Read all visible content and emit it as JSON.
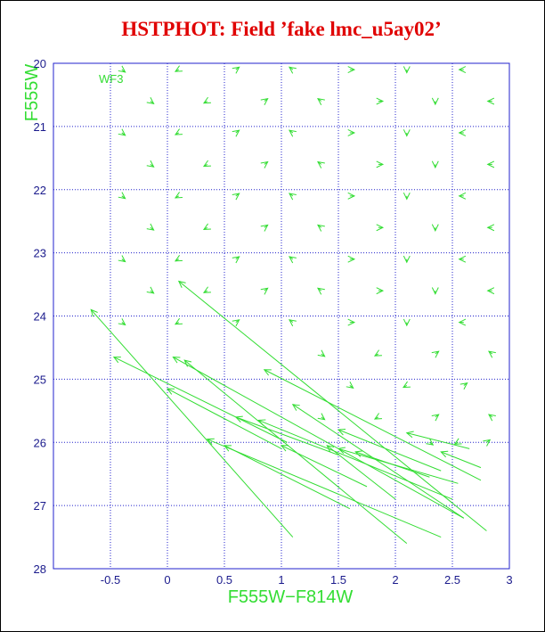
{
  "chart_data": {
    "type": "vector",
    "title": "HSTPHOT: Field ’fake lmc_u5ay02’",
    "annotation": "WF3",
    "x_label": "F555W−F814W",
    "y_label": "F555W",
    "xlim": [
      -1,
      3
    ],
    "ylim": [
      20,
      28
    ],
    "y_inverted": true,
    "xticks": [
      -0.5,
      0,
      0.5,
      1,
      1.5,
      2,
      2.5,
      3
    ],
    "yticks": [
      20,
      21,
      22,
      23,
      24,
      25,
      26,
      27,
      28
    ],
    "grid": true,
    "grid_color": "#2222cc",
    "frame_color": "#2222cc",
    "color": "#33dd33",
    "title_color": "#e00000",
    "x": [
      -0.37,
      0.07,
      0.63,
      1.07,
      1.64,
      2.1,
      2.56,
      -0.12,
      0.32,
      0.88,
      1.32,
      1.89,
      2.35,
      2.81,
      -0.37,
      0.07,
      0.63,
      1.07,
      1.64,
      2.1,
      2.56,
      -0.12,
      0.32,
      0.88,
      1.32,
      1.89,
      2.35,
      2.81,
      -0.37,
      0.07,
      0.63,
      1.07,
      1.64,
      2.1,
      2.56,
      -0.12,
      0.32,
      0.88,
      1.32,
      1.89,
      2.35,
      2.81,
      -0.37,
      0.07,
      0.63,
      1.07,
      1.64,
      2.1,
      2.56,
      -0.12,
      0.32,
      0.88,
      1.32,
      1.89,
      2.35,
      2.81,
      -0.37,
      0.07,
      0.63,
      1.07,
      1.64,
      2.1,
      2.56,
      1.38,
      1.82,
      2.38,
      2.82,
      1.63,
      2.07,
      2.63,
      1.38,
      1.82,
      2.38,
      2.82,
      2.33,
      2.52,
      2.83,
      -0.67,
      -0.47,
      0.1,
      0.05,
      0.15,
      0.0,
      0.35,
      0.5,
      0.6,
      0.8,
      0.85,
      1.0,
      1.1,
      1.5,
      1.4,
      1.5,
      1.65,
      2.4,
      2.1
    ],
    "y": [
      20.14,
      20.13,
      20.06,
      20.06,
      20.1,
      20.15,
      20.1,
      20.64,
      20.63,
      20.56,
      20.56,
      20.6,
      20.65,
      20.6,
      21.14,
      21.13,
      21.06,
      21.06,
      21.1,
      21.15,
      21.1,
      21.64,
      21.63,
      21.56,
      21.56,
      21.6,
      21.65,
      21.6,
      22.14,
      22.13,
      22.06,
      22.06,
      22.1,
      22.15,
      22.1,
      22.64,
      22.63,
      22.56,
      22.56,
      22.6,
      22.65,
      22.6,
      23.14,
      23.13,
      23.06,
      23.06,
      23.1,
      23.15,
      23.1,
      23.64,
      23.63,
      23.56,
      23.56,
      23.6,
      23.65,
      23.6,
      24.14,
      24.13,
      24.06,
      24.06,
      24.1,
      24.15,
      24.1,
      24.64,
      24.63,
      24.56,
      24.56,
      25.14,
      25.13,
      25.06,
      25.64,
      25.63,
      25.56,
      25.56,
      26.04,
      26.03,
      25.96,
      23.9,
      24.65,
      23.45,
      24.65,
      24.7,
      25.15,
      25.95,
      26.05,
      25.6,
      25.65,
      24.85,
      26.05,
      25.4,
      25.8,
      26.05,
      26.1,
      26.15,
      26.15,
      25.85
    ],
    "x_in": [
      -0.4,
      0.1,
      0.6,
      1.1,
      1.6,
      2.1,
      2.6,
      -0.15,
      0.35,
      0.85,
      1.35,
      1.85,
      2.35,
      2.85,
      -0.4,
      0.1,
      0.6,
      1.1,
      1.6,
      2.1,
      2.6,
      -0.15,
      0.35,
      0.85,
      1.35,
      1.85,
      2.35,
      2.85,
      -0.4,
      0.1,
      0.6,
      1.1,
      1.6,
      2.1,
      2.6,
      -0.15,
      0.35,
      0.85,
      1.35,
      1.85,
      2.35,
      2.85,
      -0.4,
      0.1,
      0.6,
      1.1,
      1.6,
      2.1,
      2.6,
      -0.15,
      0.35,
      0.85,
      1.35,
      1.85,
      2.35,
      2.85,
      -0.4,
      0.1,
      0.6,
      1.1,
      1.6,
      2.1,
      2.6,
      1.35,
      1.85,
      2.35,
      2.85,
      1.6,
      2.1,
      2.6,
      1.35,
      1.85,
      2.35,
      2.85,
      2.3,
      2.55,
      2.8,
      1.1,
      1.05,
      2.8,
      2.6,
      2.1,
      1.0,
      2.4,
      1.6,
      1.5,
      2.5,
      2.75,
      1.75,
      2.6,
      2.4,
      2.0,
      2.55,
      2.3,
      2.75,
      2.65
    ],
    "y_in": [
      20.1,
      20.1,
      20.1,
      20.1,
      20.1,
      20.1,
      20.1,
      20.6,
      20.6,
      20.6,
      20.6,
      20.6,
      20.6,
      20.6,
      21.1,
      21.1,
      21.1,
      21.1,
      21.1,
      21.1,
      21.1,
      21.6,
      21.6,
      21.6,
      21.6,
      21.6,
      21.6,
      21.6,
      22.1,
      22.1,
      22.1,
      22.1,
      22.1,
      22.1,
      22.1,
      22.6,
      22.6,
      22.6,
      22.6,
      22.6,
      22.6,
      22.6,
      23.1,
      23.1,
      23.1,
      23.1,
      23.1,
      23.1,
      23.1,
      23.6,
      23.6,
      23.6,
      23.6,
      23.6,
      23.6,
      23.6,
      24.1,
      24.1,
      24.1,
      24.1,
      24.1,
      24.1,
      24.1,
      24.6,
      24.6,
      24.6,
      24.6,
      25.1,
      25.1,
      25.1,
      25.6,
      25.6,
      25.6,
      25.6,
      26.0,
      26.0,
      26.0,
      27.5,
      26.0,
      27.4,
      27.2,
      27.6,
      26.1,
      27.5,
      27.05,
      26.2,
      26.9,
      26.6,
      26.7,
      27.2,
      26.45,
      26.9,
      26.65,
      26.55,
      26.4,
      26.1
    ]
  }
}
